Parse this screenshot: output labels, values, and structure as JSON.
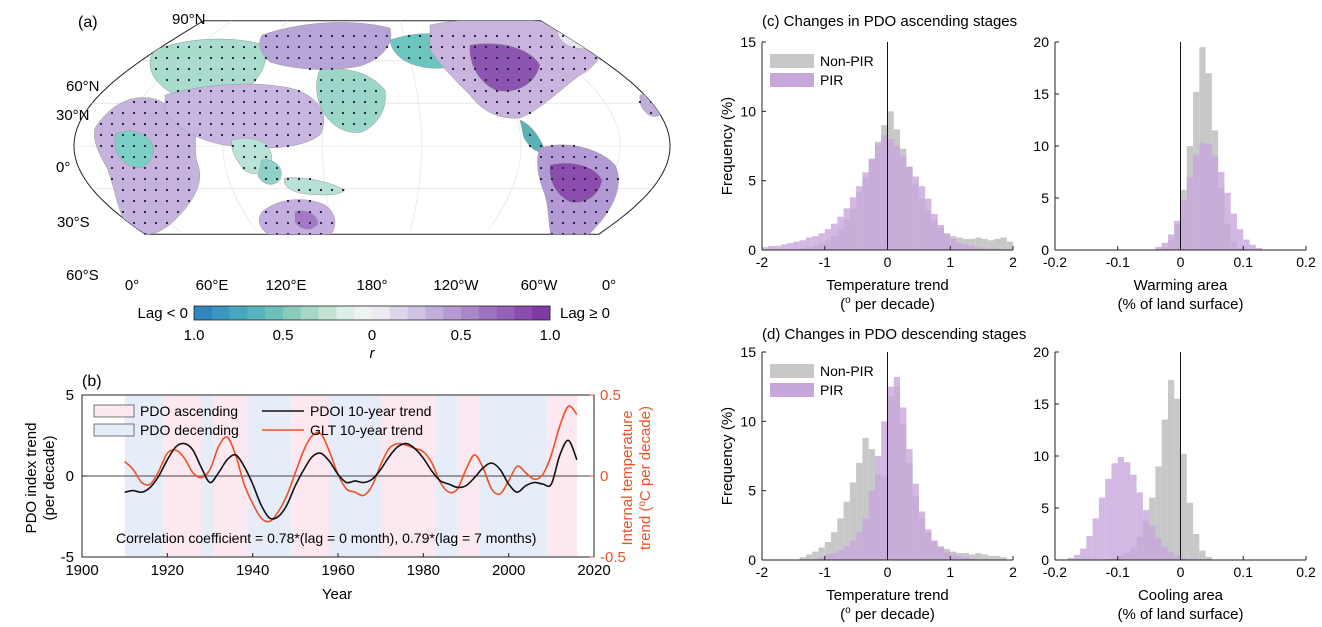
{
  "panel_a": {
    "label": "(a)",
    "lat_labels": [
      "90°N",
      "60°N",
      "30°N",
      "0°",
      "30°S",
      "60°S"
    ],
    "lon_labels": [
      "0°",
      "60°E",
      "120°E",
      "180°",
      "120°W",
      "60°W",
      "0°"
    ],
    "colorbar": {
      "left_label": "Lag < 0",
      "right_label": "Lag ≥ 0",
      "ticks": [
        "1.0",
        "0.5",
        "0",
        "0.5",
        "1.0"
      ],
      "var_label": "r",
      "colors_neg": [
        "#2f86bd",
        "#3a97bf",
        "#47a7bf",
        "#58b5bd",
        "#6fc0bb",
        "#8acbbd",
        "#a6d7c5",
        "#c2e3d4",
        "#dceee7",
        "#eef4f2"
      ],
      "colors_pos": [
        "#eceaf3",
        "#ddd6ea",
        "#cfc2e3",
        "#c2aedb",
        "#b59bd2",
        "#a987c9",
        "#9e73c0",
        "#9560b8",
        "#8a4cad",
        "#7f3aa3"
      ]
    }
  },
  "panel_b": {
    "label": "(b)",
    "ylabel_left": "PDO index trend\n(per decade)",
    "ylabel_right": "Internal temperature\ntrend (oC per decade)",
    "xlabel": "Year",
    "legend": {
      "ascending": "PDO ascending",
      "descending": "PDO decending",
      "pdoi": "PDOI 10-year trend",
      "glt": "GLT 10-year trend"
    },
    "annotation": "Correlation coefficient = 0.78*(lag = 0 month), 0.79*(lag = 7 months)",
    "colors": {
      "pdoi": "#111111",
      "glt": "#ef5124",
      "ascending": "#fce8f0",
      "descending": "#e6ecf8"
    }
  },
  "panel_c_title": "(c) Changes in PDO ascending stages",
  "panel_d_title": "(d) Changes in PDO descending stages",
  "hist_legend": {
    "nonpir": "Non-PIR",
    "pir": "PIR"
  },
  "hist_xlabels": {
    "temp": [
      "Temperature trend",
      "(oC per decade)"
    ],
    "warm": [
      "Warming area",
      "(% of land surface)"
    ],
    "cool": [
      "Cooling area",
      "(% of land surface)"
    ]
  },
  "hist_ylabel": "Frequency (%)",
  "chart_data": [
    {
      "type": "line",
      "title": "",
      "xlabel": "Year",
      "ylabel": "PDO index trend (per decade)",
      "ylabel_right": "Internal temperature trend (oC per decade)",
      "xlim": [
        1900,
        2020
      ],
      "ylim": [
        -5,
        5
      ],
      "ylim_right": [
        -0.5,
        0.5
      ],
      "xticks": [
        1900,
        1920,
        1940,
        1960,
        1980,
        2000,
        2020
      ],
      "yticks": [
        -5,
        0,
        5
      ],
      "yticks_right": [
        -0.5,
        0,
        0.5
      ],
      "shaded_periods": [
        {
          "stage": "descending",
          "range": [
            1910,
            1919
          ]
        },
        {
          "stage": "ascending",
          "range": [
            1919,
            1928
          ]
        },
        {
          "stage": "descending",
          "range": [
            1928,
            1931
          ]
        },
        {
          "stage": "ascending",
          "range": [
            1931,
            1939
          ]
        },
        {
          "stage": "descending",
          "range": [
            1939,
            1949
          ]
        },
        {
          "stage": "ascending",
          "range": [
            1949,
            1958
          ]
        },
        {
          "stage": "descending",
          "range": [
            1958,
            1970
          ]
        },
        {
          "stage": "ascending",
          "range": [
            1970,
            1983
          ]
        },
        {
          "stage": "descending",
          "range": [
            1983,
            1988
          ]
        },
        {
          "stage": "ascending",
          "range": [
            1988,
            1993
          ]
        },
        {
          "stage": "descending",
          "range": [
            1993,
            2009
          ]
        },
        {
          "stage": "ascending",
          "range": [
            2009,
            2016
          ]
        }
      ],
      "series": [
        {
          "name": "PDOI 10-year trend",
          "axis": "left",
          "x": [
            1910,
            1912,
            1914,
            1916,
            1918,
            1920,
            1922,
            1924,
            1926,
            1928,
            1930,
            1932,
            1934,
            1936,
            1938,
            1940,
            1942,
            1944,
            1946,
            1948,
            1950,
            1952,
            1954,
            1956,
            1958,
            1960,
            1962,
            1964,
            1966,
            1968,
            1970,
            1972,
            1974,
            1976,
            1978,
            1980,
            1982,
            1984,
            1986,
            1988,
            1990,
            1992,
            1994,
            1996,
            1998,
            2000,
            2002,
            2004,
            2006,
            2008,
            2010,
            2012,
            2014,
            2016
          ],
          "y": [
            -1.0,
            -0.9,
            -1.0,
            -0.7,
            0.0,
            1.0,
            1.8,
            2.0,
            1.6,
            0.5,
            -0.4,
            0.2,
            1.0,
            1.3,
            0.6,
            -0.5,
            -1.8,
            -2.6,
            -2.5,
            -1.8,
            -0.6,
            0.4,
            1.2,
            1.4,
            0.9,
            0.1,
            -0.4,
            -0.3,
            -0.4,
            -0.2,
            0.4,
            1.2,
            1.8,
            2.0,
            1.7,
            1.1,
            0.3,
            -0.3,
            -0.5,
            -0.7,
            -0.6,
            -0.1,
            0.5,
            0.8,
            0.4,
            -0.5,
            -1.0,
            -0.6,
            -0.4,
            -0.5,
            -0.5,
            1.3,
            2.2,
            1.0
          ]
        },
        {
          "name": "GLT 10-year trend",
          "axis": "right",
          "x": [
            1910,
            1912,
            1914,
            1916,
            1918,
            1920,
            1922,
            1924,
            1926,
            1928,
            1930,
            1932,
            1934,
            1936,
            1938,
            1940,
            1942,
            1944,
            1946,
            1948,
            1950,
            1952,
            1954,
            1956,
            1958,
            1960,
            1962,
            1964,
            1966,
            1968,
            1970,
            1972,
            1974,
            1976,
            1978,
            1980,
            1982,
            1984,
            1986,
            1988,
            1990,
            1992,
            1994,
            1996,
            1998,
            2000,
            2002,
            2004,
            2006,
            2008,
            2010,
            2012,
            2014,
            2016
          ],
          "y": [
            0.09,
            0.04,
            -0.04,
            -0.05,
            0.03,
            0.14,
            0.16,
            0.11,
            0.02,
            -0.01,
            0.04,
            0.18,
            0.24,
            0.13,
            -0.05,
            -0.17,
            -0.26,
            -0.28,
            -0.22,
            -0.12,
            0.02,
            0.16,
            0.25,
            0.26,
            0.15,
            0.01,
            -0.08,
            -0.1,
            -0.12,
            -0.06,
            0.07,
            0.17,
            0.2,
            0.19,
            0.17,
            0.15,
            0.08,
            -0.04,
            -0.1,
            -0.08,
            0.04,
            0.13,
            0.05,
            -0.08,
            -0.11,
            -0.03,
            0.06,
            0.02,
            -0.02,
            0.01,
            0.13,
            0.31,
            0.43,
            0.38
          ]
        }
      ]
    },
    {
      "type": "bar",
      "subtype": "histogram",
      "panel": "c-left",
      "xlabel": "Temperature trend (oC per decade)",
      "ylabel": "Frequency (%)",
      "xlim": [
        -2,
        2
      ],
      "ylim": [
        0,
        15
      ],
      "xticks": [
        -2,
        -1,
        0,
        1,
        2
      ],
      "yticks": [
        0,
        5,
        10,
        15
      ],
      "bin_width": 0.1,
      "x": [
        -1.95,
        -1.85,
        -1.75,
        -1.65,
        -1.55,
        -1.45,
        -1.35,
        -1.25,
        -1.15,
        -1.05,
        -0.95,
        -0.85,
        -0.75,
        -0.65,
        -0.55,
        -0.45,
        -0.35,
        -0.25,
        -0.15,
        -0.05,
        0.05,
        0.15,
        0.25,
        0.35,
        0.45,
        0.55,
        0.65,
        0.75,
        0.85,
        0.95,
        1.05,
        1.15,
        1.25,
        1.35,
        1.45,
        1.55,
        1.65,
        1.75,
        1.85,
        1.95
      ],
      "series": [
        {
          "name": "Non-PIR",
          "values": [
            0,
            0,
            0,
            0,
            0,
            0,
            0.1,
            0.2,
            0.3,
            0.5,
            0.7,
            1.0,
            1.5,
            2.2,
            3.0,
            4.2,
            5.2,
            6.5,
            7.8,
            9.0,
            10.0,
            8.7,
            7.3,
            6.0,
            4.8,
            3.7,
            2.8,
            2.1,
            1.6,
            1.2,
            1.0,
            0.9,
            0.8,
            0.8,
            0.9,
            0.8,
            0.7,
            0.8,
            0.9,
            0.6
          ]
        },
        {
          "name": "PIR",
          "values": [
            0.2,
            0.3,
            0.3,
            0.4,
            0.5,
            0.6,
            0.7,
            0.9,
            1.0,
            1.2,
            1.5,
            1.9,
            2.4,
            3.0,
            3.8,
            4.6,
            5.6,
            6.6,
            7.6,
            8.3,
            8.0,
            7.5,
            6.8,
            6.0,
            5.3,
            4.6,
            3.7,
            2.6,
            1.8,
            1.2,
            0.8,
            0.5,
            0.4,
            0.3,
            0.2,
            0.1,
            0.1,
            0.1,
            0,
            0
          ]
        }
      ]
    },
    {
      "type": "bar",
      "subtype": "histogram",
      "panel": "c-right",
      "xlabel": "Warming area (% of land surface)",
      "ylabel": "Frequency (%)",
      "xlim": [
        -0.2,
        0.2
      ],
      "ylim": [
        0,
        20
      ],
      "xticks": [
        -0.2,
        -0.1,
        0,
        0.1,
        0.2
      ],
      "yticks": [
        0,
        5,
        10,
        15,
        20
      ],
      "bin_width": 0.01,
      "x": [
        -0.035,
        -0.025,
        -0.015,
        -0.005,
        0.005,
        0.015,
        0.025,
        0.035,
        0.045,
        0.055,
        0.065,
        0.075,
        0.085,
        0.095,
        0.105,
        0.115,
        0.125
      ],
      "series": [
        {
          "name": "Non-PIR",
          "values": [
            0,
            0.3,
            1.0,
            2.5,
            5.8,
            10.0,
            15.2,
            19.5,
            17.0,
            11.5,
            6.0,
            2.5,
            0.8,
            0.2,
            0,
            0,
            0
          ]
        },
        {
          "name": "PIR",
          "values": [
            0.3,
            0.7,
            1.5,
            2.8,
            4.8,
            7.0,
            9.2,
            10.3,
            10.2,
            9.0,
            7.5,
            5.5,
            3.5,
            2.0,
            1.0,
            0.5,
            0.2
          ]
        }
      ]
    },
    {
      "type": "bar",
      "subtype": "histogram",
      "panel": "d-left",
      "xlabel": "Temperature trend (oC per decade)",
      "ylabel": "Frequency (%)",
      "xlim": [
        -2,
        2
      ],
      "ylim": [
        0,
        15
      ],
      "xticks": [
        -2,
        -1,
        0,
        1,
        2
      ],
      "yticks": [
        0,
        5,
        10,
        15
      ],
      "bin_width": 0.1,
      "x": [
        -1.35,
        -1.25,
        -1.15,
        -1.05,
        -0.95,
        -0.85,
        -0.75,
        -0.65,
        -0.55,
        -0.45,
        -0.35,
        -0.25,
        -0.15,
        -0.05,
        0.05,
        0.15,
        0.25,
        0.35,
        0.45,
        0.55,
        0.65,
        0.75,
        0.85,
        0.95,
        1.05,
        1.15,
        1.25,
        1.35,
        1.45,
        1.55,
        1.65,
        1.75,
        1.85
      ],
      "series": [
        {
          "name": "Non-PIR",
          "values": [
            0.2,
            0.4,
            0.6,
            0.9,
            1.3,
            2.0,
            3.0,
            4.2,
            5.6,
            7.0,
            8.8,
            8.0,
            6.2,
            6.0,
            11.8,
            12.5,
            9.8,
            7.0,
            4.6,
            3.0,
            2.0,
            1.4,
            1.0,
            0.8,
            0.6,
            0.5,
            0.5,
            0.4,
            0.5,
            0.4,
            0.3,
            0.3,
            0.2
          ]
        },
        {
          "name": "PIR",
          "values": [
            0,
            0,
            0,
            0.2,
            0.4,
            0.5,
            0.7,
            1.0,
            1.4,
            2.0,
            3.0,
            5.0,
            7.5,
            10.0,
            12.5,
            13.2,
            11.0,
            8.0,
            5.5,
            3.5,
            2.2,
            1.4,
            0.9,
            0.6,
            0.4,
            0.3,
            0.2,
            0.1,
            0,
            0,
            0,
            0,
            0
          ]
        }
      ]
    },
    {
      "type": "bar",
      "subtype": "histogram",
      "panel": "d-right",
      "xlabel": "Cooling area (% of land surface)",
      "ylabel": "Frequency (%)",
      "xlim": [
        -0.2,
        0.2
      ],
      "ylim": [
        0,
        20
      ],
      "xticks": [
        -0.2,
        -0.1,
        0,
        0.1,
        0.2
      ],
      "yticks": [
        0,
        5,
        10,
        15,
        20
      ],
      "bin_width": 0.01,
      "x": [
        -0.175,
        -0.165,
        -0.155,
        -0.145,
        -0.135,
        -0.125,
        -0.115,
        -0.105,
        -0.095,
        -0.085,
        -0.075,
        -0.065,
        -0.055,
        -0.045,
        -0.035,
        -0.025,
        -0.015,
        -0.005,
        0.005,
        0.015,
        0.025,
        0.035,
        0.045
      ],
      "series": [
        {
          "name": "Non-PIR",
          "values": [
            0,
            0,
            0,
            0,
            0,
            0,
            0.1,
            0.2,
            0.4,
            0.7,
            1.2,
            2.2,
            3.8,
            6.0,
            9.0,
            13.5,
            17.3,
            15.5,
            10.2,
            5.5,
            2.5,
            0.9,
            0.3
          ]
        },
        {
          "name": "PIR",
          "values": [
            0.2,
            0.5,
            1.1,
            2.3,
            4.0,
            6.0,
            7.8,
            9.3,
            9.9,
            9.4,
            8.2,
            6.5,
            4.8,
            3.3,
            2.1,
            1.3,
            0.8,
            0.4,
            0.2,
            0.1,
            0,
            0,
            0
          ]
        }
      ]
    }
  ]
}
